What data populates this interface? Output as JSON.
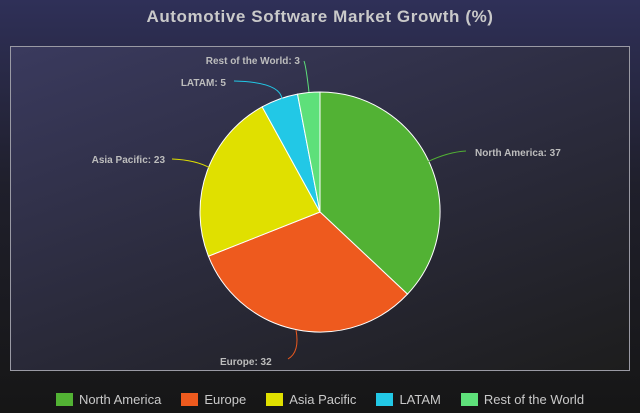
{
  "chart_data": {
    "type": "pie",
    "title": "Automotive Software Market Growth (%)",
    "categories": [
      "North America",
      "Europe",
      "Asia Pacific",
      "LATAM",
      "Rest of the World"
    ],
    "values": [
      37,
      32,
      23,
      5,
      3
    ],
    "labels": [
      "North America: 37",
      "Europe: 32",
      "Asia Pacific: 23",
      "LATAM: 5",
      "Rest of the World: 3"
    ],
    "colors": [
      "#52b234",
      "#ee5a1e",
      "#e0e000",
      "#22c8e6",
      "#5ee07a"
    ],
    "legend_position": "bottom"
  }
}
